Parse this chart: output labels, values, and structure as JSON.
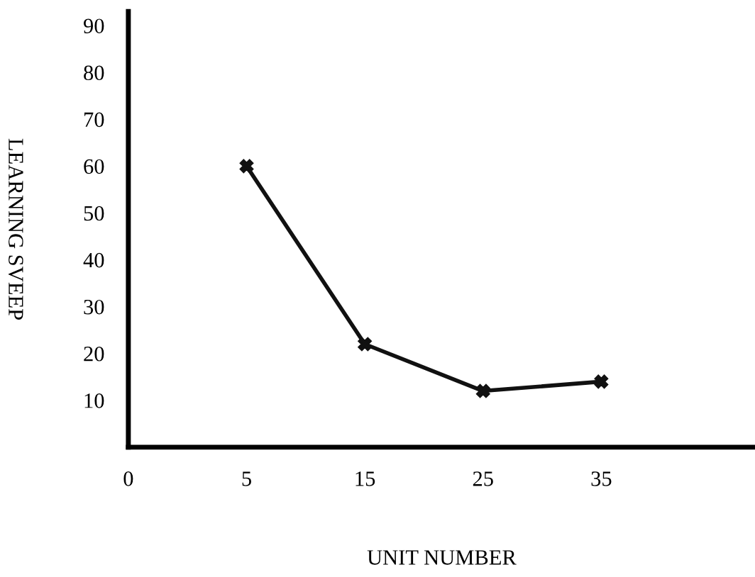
{
  "chart_data": {
    "type": "line",
    "xlabel": "UNIT NUMBER",
    "ylabel": "LEARNING SVEEP",
    "categories": [
      "0",
      "5",
      "15",
      "25",
      "35"
    ],
    "series": [
      {
        "color": "#111111",
        "values": [
          null,
          60,
          22,
          12,
          14
        ]
      }
    ],
    "ylim": [
      0,
      93
    ],
    "yticks": [
      10,
      20,
      30,
      40,
      50,
      60,
      70,
      80,
      90
    ],
    "grid": false,
    "legend": false,
    "marker": "cross",
    "line_style": "solid"
  }
}
